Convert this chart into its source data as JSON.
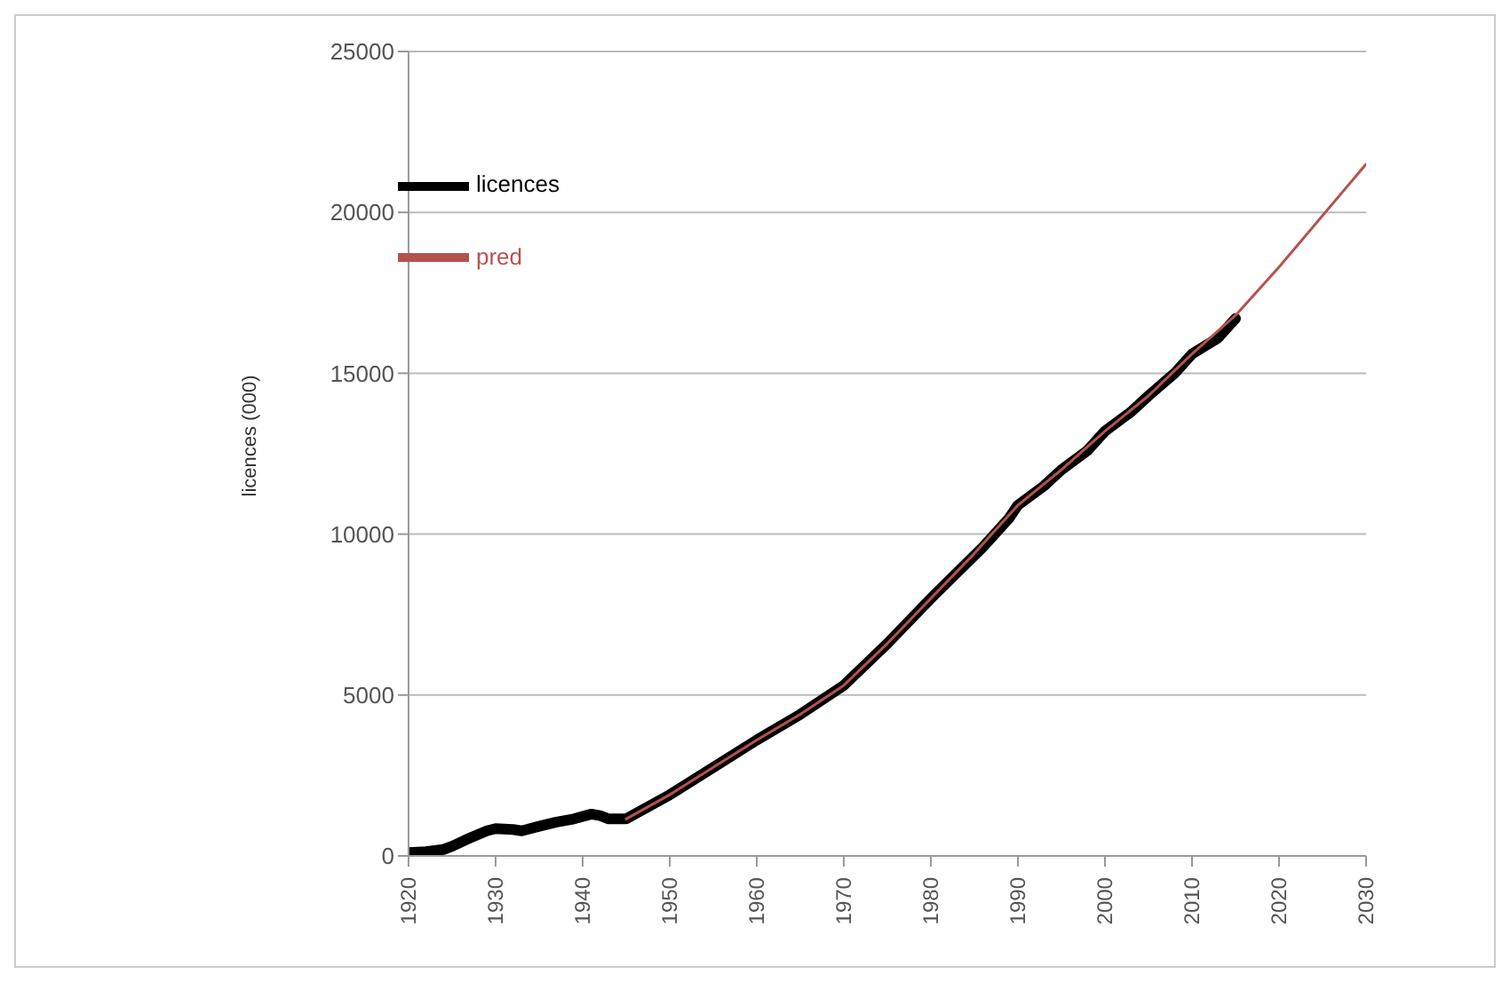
{
  "chart_data": {
    "type": "line",
    "ylabel": "licences (000)",
    "xlim": [
      1920,
      2030
    ],
    "xticks": [
      1920,
      1930,
      1940,
      1950,
      1960,
      1970,
      1980,
      1990,
      2000,
      2010,
      2020,
      2030
    ],
    "ylim": [
      0,
      25000
    ],
    "yticks": [
      0,
      5000,
      10000,
      15000,
      20000,
      25000
    ],
    "grid": "y",
    "legend": "top left",
    "marker": "none",
    "line_style": "solid",
    "series": [
      {
        "name": "licences",
        "color": "#000000",
        "x": [
          1920,
          1922,
          1924,
          1925,
          1927,
          1929,
          1930,
          1932,
          1933,
          1935,
          1937,
          1939,
          1941,
          1942,
          1943,
          1945,
          1950,
          1955,
          1960,
          1965,
          1970,
          1975,
          1980,
          1983,
          1986,
          1989,
          1990,
          1993,
          1995,
          1998,
          2000,
          2003,
          2005,
          2008,
          2010,
          2013,
          2015
        ],
        "values": [
          100,
          130,
          200,
          300,
          550,
          780,
          850,
          820,
          780,
          920,
          1050,
          1150,
          1300,
          1250,
          1150,
          1150,
          1900,
          2750,
          3600,
          4400,
          5300,
          6600,
          8000,
          8800,
          9600,
          10500,
          10900,
          11500,
          12000,
          12600,
          13200,
          13800,
          14300,
          15000,
          15600,
          16100,
          16700
        ]
      },
      {
        "name": "pred",
        "color": "#b5524f",
        "x": [
          1945,
          1950,
          1955,
          1960,
          1965,
          1970,
          1975,
          1980,
          1985,
          1990,
          1995,
          2000,
          2005,
          2010,
          2015,
          2020,
          2025,
          2030
        ],
        "values": [
          1150,
          1900,
          2750,
          3600,
          4400,
          5300,
          6600,
          8000,
          9400,
          10900,
          12000,
          13200,
          14300,
          15600,
          16800,
          18300,
          19900,
          21500
        ]
      }
    ]
  }
}
